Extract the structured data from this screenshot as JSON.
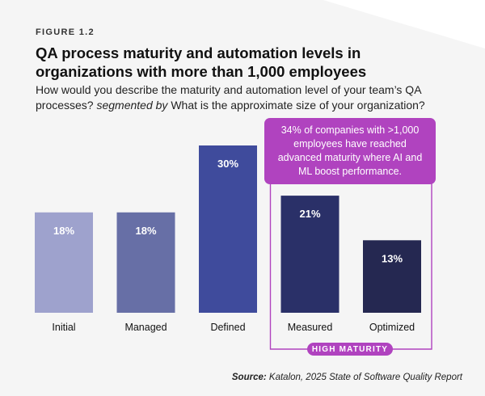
{
  "figure_label": "FIGURE 1.2",
  "title": "QA process maturity and automation levels in organizations with more than 1,000 employees",
  "subtitle": {
    "part1": "How would you describe the maturity and automation level of your team’s QA processes?",
    "segment_word": "segmented by",
    "part2": "What is the approximate size of your organization?"
  },
  "callout": "34% of companies with >1,000 employees have reached advanced maturity where AI and ML boost performance.",
  "group_badge": "HIGH MATURITY",
  "source": {
    "label": "Source:",
    "text": "Katalon, 2025 State of Software Quality Report"
  },
  "chart_data": {
    "type": "bar",
    "categories": [
      "Initial",
      "Managed",
      "Defined",
      "Measured",
      "Optimized"
    ],
    "values": [
      18,
      18,
      30,
      21,
      13
    ],
    "value_labels": [
      "18%",
      "18%",
      "30%",
      "21%",
      "13%"
    ],
    "colors": [
      "#9ea2cd",
      "#676fa6",
      "#3f4b9c",
      "#2a3068",
      "#252851"
    ],
    "ylim": [
      0,
      30
    ],
    "title": "QA process maturity and automation levels in organizations with more than 1,000 employees",
    "xlabel": "",
    "ylabel": "",
    "grid": false,
    "highlight_group": [
      "Measured",
      "Optimized"
    ]
  },
  "colors": {
    "accent": "#b043bf",
    "background": "#f5f5f5",
    "label_text": "#ffffff"
  }
}
